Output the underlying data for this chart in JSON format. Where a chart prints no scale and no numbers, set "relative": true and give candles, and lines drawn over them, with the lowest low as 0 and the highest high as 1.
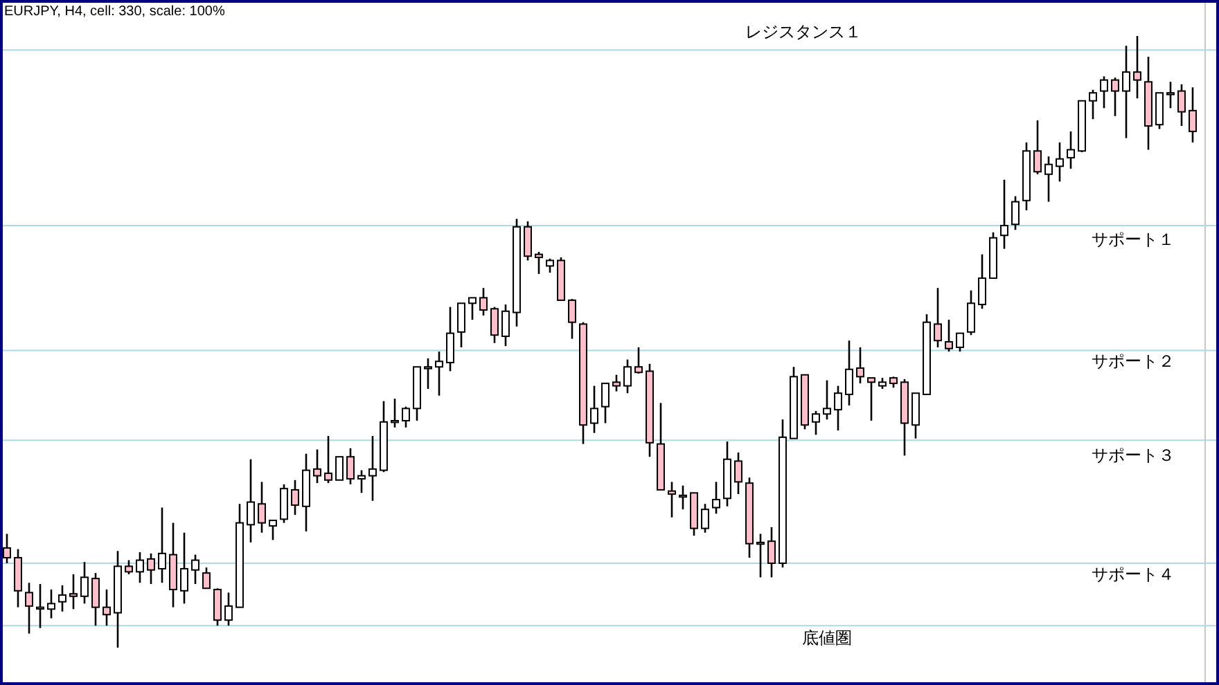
{
  "chart_data": {
    "type": "candlestick",
    "title": "EURJPY, H4, cell: 330, scale: 100%",
    "relative": true,
    "categories": [
      null,
      null,
      null,
      null,
      null,
      null,
      null,
      null,
      null,
      null,
      null,
      null,
      null,
      null,
      null,
      null,
      null,
      null,
      null,
      null,
      null,
      null,
      null,
      null,
      null,
      null,
      null,
      null,
      null,
      null,
      null,
      null,
      null,
      null,
      null,
      null,
      null,
      null,
      null,
      null,
      null,
      null,
      null,
      null,
      null,
      null,
      null,
      null,
      null,
      null,
      null,
      null,
      null,
      null,
      null,
      null,
      null,
      null,
      null,
      null,
      null,
      null,
      null,
      null,
      null,
      null,
      null,
      null,
      null,
      null,
      null,
      null,
      null,
      null,
      null,
      null,
      null,
      null,
      null,
      null,
      null,
      null,
      null,
      null,
      null,
      null,
      null,
      null,
      null,
      null,
      null,
      null,
      null,
      null,
      null,
      null,
      null,
      null,
      null,
      null,
      null,
      null,
      null,
      null,
      null,
      null,
      null,
      null
    ],
    "ohlc": [
      [
        0.163,
        0.186,
        0.138,
        0.147
      ],
      [
        0.147,
        0.161,
        0.066,
        0.093
      ],
      [
        0.09,
        0.106,
        0.023,
        0.068
      ],
      [
        0.066,
        0.104,
        0.032,
        0.066
      ],
      [
        0.063,
        0.095,
        0.048,
        0.072
      ],
      [
        0.075,
        0.102,
        0.059,
        0.086
      ],
      [
        0.088,
        0.12,
        0.063,
        0.084
      ],
      [
        0.084,
        0.14,
        0.072,
        0.115
      ],
      [
        0.113,
        0.122,
        0.036,
        0.066
      ],
      [
        0.066,
        0.095,
        0.036,
        0.054
      ],
      [
        0.057,
        0.158,
        0,
        0.133
      ],
      [
        0.133,
        0.143,
        0.12,
        0.124
      ],
      [
        0.124,
        0.156,
        0.106,
        0.143
      ],
      [
        0.145,
        0.154,
        0.104,
        0.127
      ],
      [
        0.129,
        0.229,
        0.106,
        0.154
      ],
      [
        0.152,
        0.204,
        0.066,
        0.095
      ],
      [
        0.093,
        0.188,
        0.072,
        0.129
      ],
      [
        0.127,
        0.152,
        0.104,
        0.143
      ],
      [
        0.122,
        0.131,
        0.097,
        0.097
      ],
      [
        0.095,
        0.097,
        0.036,
        0.045
      ],
      [
        0.045,
        0.09,
        0.036,
        0.068
      ],
      [
        0.066,
        0.235,
        0.066,
        0.204
      ],
      [
        0.201,
        0.308,
        0.172,
        0.238
      ],
      [
        0.235,
        0.271,
        0.188,
        0.204
      ],
      [
        0.199,
        0.208,
        0.176,
        0.208
      ],
      [
        0.21,
        0.267,
        0.204,
        0.26
      ],
      [
        0.258,
        0.274,
        0.217,
        0.233
      ],
      [
        0.231,
        0.317,
        0.19,
        0.29
      ],
      [
        0.292,
        0.324,
        0.269,
        0.281
      ],
      [
        0.285,
        0.346,
        0.269,
        0.274
      ],
      [
        0.274,
        0.312,
        0.274,
        0.312
      ],
      [
        0.312,
        0.326,
        0.267,
        0.276
      ],
      [
        0.276,
        0.29,
        0.253,
        0.281
      ],
      [
        0.281,
        0.346,
        0.24,
        0.292
      ],
      [
        0.29,
        0.403,
        0.287,
        0.369
      ],
      [
        0.371,
        0.407,
        0.36,
        0.371
      ],
      [
        0.371,
        0.394,
        0.36,
        0.391
      ],
      [
        0.391,
        0.459,
        0.371,
        0.459
      ],
      [
        0.459,
        0.473,
        0.423,
        0.459
      ],
      [
        0.459,
        0.484,
        0.412,
        0.468
      ],
      [
        0.466,
        0.557,
        0.452,
        0.514
      ],
      [
        0.516,
        0.563,
        0.491,
        0.563
      ],
      [
        0.563,
        0.572,
        0.536,
        0.572
      ],
      [
        0.572,
        0.588,
        0.543,
        0.552
      ],
      [
        0.554,
        0.557,
        0.498,
        0.511
      ],
      [
        0.509,
        0.561,
        0.493,
        0.55
      ],
      [
        0.548,
        0.701,
        0.525,
        0.688
      ],
      [
        0.688,
        0.697,
        0.633,
        0.64
      ],
      [
        0.643,
        0.647,
        0.611,
        0.638
      ],
      [
        0.624,
        0.636,
        0.613,
        0.633
      ],
      [
        0.633,
        0.638,
        0.568,
        0.568
      ],
      [
        0.568,
        0.57,
        0.505,
        0.532
      ],
      [
        0.529,
        0.532,
        0.333,
        0.364
      ],
      [
        0.367,
        0.428,
        0.351,
        0.391
      ],
      [
        0.394,
        0.432,
        0.367,
        0.432
      ],
      [
        0.434,
        0.446,
        0.419,
        0.428
      ],
      [
        0.428,
        0.471,
        0.416,
        0.459
      ],
      [
        0.459,
        0.491,
        0.448,
        0.45
      ],
      [
        0.452,
        0.464,
        0.312,
        0.335
      ],
      [
        0.333,
        0.4,
        0.258,
        0.258
      ],
      [
        0.256,
        0.271,
        0.213,
        0.251
      ],
      [
        0.249,
        0.265,
        0.226,
        0.249
      ],
      [
        0.253,
        0.253,
        0.183,
        0.195
      ],
      [
        0.195,
        0.235,
        0.188,
        0.226
      ],
      [
        0.229,
        0.271,
        0.219,
        0.242
      ],
      [
        0.244,
        0.337,
        0.231,
        0.308
      ],
      [
        0.305,
        0.319,
        0.251,
        0.271
      ],
      [
        0.269,
        0.278,
        0.147,
        0.17
      ],
      [
        0.172,
        0.186,
        0.115,
        0.172
      ],
      [
        0.174,
        0.197,
        0.115,
        0.138
      ],
      [
        0.138,
        0.373,
        0.131,
        0.344
      ],
      [
        0.342,
        0.459,
        0.342,
        0.443
      ],
      [
        0.446,
        0.446,
        0.357,
        0.364
      ],
      [
        0.369,
        0.387,
        0.348,
        0.382
      ],
      [
        0.382,
        0.437,
        0.373,
        0.391
      ],
      [
        0.389,
        0.428,
        0.355,
        0.416
      ],
      [
        0.414,
        0.502,
        0.396,
        0.455
      ],
      [
        0.457,
        0.491,
        0.432,
        0.443
      ],
      [
        0.441,
        0.441,
        0.371,
        0.434
      ],
      [
        0.428,
        0.441,
        0.423,
        0.434
      ],
      [
        0.441,
        0.443,
        0.425,
        0.432
      ],
      [
        0.434,
        0.439,
        0.314,
        0.367
      ],
      [
        0.364,
        0.416,
        0.342,
        0.416
      ],
      [
        0.414,
        0.545,
        0.414,
        0.532
      ],
      [
        0.529,
        0.588,
        0.491,
        0.502
      ],
      [
        0.5,
        0.536,
        0.484,
        0.489
      ],
      [
        0.491,
        0.514,
        0.484,
        0.514
      ],
      [
        0.516,
        0.584,
        0.511,
        0.563
      ],
      [
        0.561,
        0.643,
        0.554,
        0.604
      ],
      [
        0.604,
        0.679,
        0.604,
        0.67
      ],
      [
        0.674,
        0.765,
        0.652,
        0.69
      ],
      [
        0.692,
        0.738,
        0.683,
        0.729
      ],
      [
        0.731,
        0.826,
        0.715,
        0.812
      ],
      [
        0.812,
        0.862,
        0.774,
        0.778
      ],
      [
        0.774,
        0.803,
        0.729,
        0.79
      ],
      [
        0.787,
        0.826,
        0.762,
        0.799
      ],
      [
        0.801,
        0.844,
        0.783,
        0.814
      ],
      [
        0.812,
        0.894,
        0.81,
        0.894
      ],
      [
        0.894,
        0.912,
        0.864,
        0.907
      ],
      [
        0.91,
        0.934,
        0.882,
        0.928
      ],
      [
        0.928,
        0.932,
        0.869,
        0.91
      ],
      [
        0.91,
        0.984,
        0.833,
        0.941
      ],
      [
        0.941,
        1,
        0.898,
        0.928
      ],
      [
        0.925,
        0.966,
        0.814,
        0.853
      ],
      [
        0.855,
        0.907,
        0.848,
        0.907
      ],
      [
        0.907,
        0.925,
        0.882,
        0.907
      ],
      [
        0.91,
        0.921,
        0.853,
        0.876
      ],
      [
        0.878,
        0.916,
        0.826,
        0.844
      ]
    ],
    "ref_lines": [
      {
        "axis": "y",
        "value": 0.977,
        "label": "レジスタンス１",
        "color": "#add8e6"
      },
      {
        "axis": "y",
        "value": 0.69,
        "label": "サポート１",
        "color": "#add8e6"
      },
      {
        "axis": "y",
        "value": 0.486,
        "label": "サポート２",
        "color": "#add8e6"
      },
      {
        "axis": "y",
        "value": 0.339,
        "label": "サポート３",
        "color": "#add8e6"
      },
      {
        "axis": "y",
        "value": 0.138,
        "label": "サポート４",
        "color": "#add8e6"
      },
      {
        "axis": "y",
        "value": 0.036,
        "label": "底値圏",
        "color": "#add8e6"
      }
    ]
  }
}
